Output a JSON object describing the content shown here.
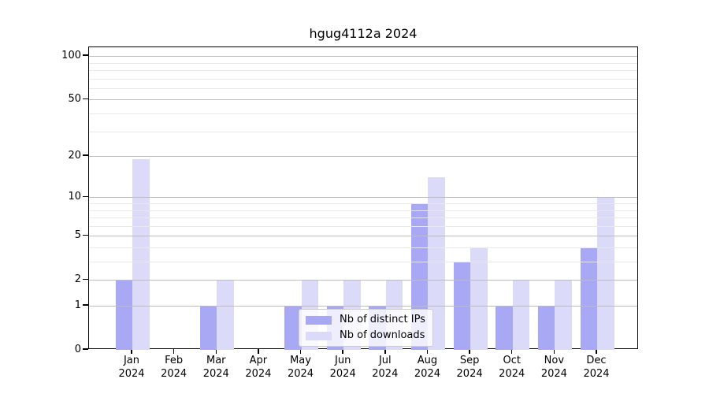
{
  "title": "hgug4112a 2024",
  "chart_data": {
    "type": "bar",
    "title": "hgug4112a 2024",
    "categories": [
      "Jan",
      "Feb",
      "Mar",
      "Apr",
      "May",
      "Jun",
      "Jul",
      "Aug",
      "Sep",
      "Oct",
      "Nov",
      "Dec"
    ],
    "x_tick_year_line": "2024",
    "series": [
      {
        "name": "Nb of distinct IPs",
        "color": "#a8a8f4",
        "values": [
          2,
          0,
          1,
          0,
          1,
          1,
          1,
          9,
          3,
          1,
          1,
          4
        ]
      },
      {
        "name": "Nb of downloads",
        "color": "#dbdbf9",
        "values": [
          19,
          0,
          2,
          0,
          2,
          2,
          2,
          14,
          4,
          2,
          2,
          10
        ]
      }
    ],
    "y_axis": {
      "scale": "log1p",
      "major_ticks": [
        0,
        1,
        2,
        5,
        10,
        20,
        50,
        100
      ],
      "minor_gridlines": [
        3,
        4,
        6,
        7,
        8,
        9,
        30,
        40,
        60,
        70,
        80,
        90
      ],
      "range_top": 115
    },
    "legend": {
      "position": "lower center",
      "items": [
        "Nb of distinct IPs",
        "Nb of downloads"
      ]
    },
    "colors": {
      "bar_distinct_ips": "#a8a8f4",
      "bar_downloads": "#dbdbf9",
      "major_grid": "#bdbdbd",
      "minor_grid": "#e9e9e9",
      "axis": "#000000",
      "text": "#000000"
    }
  }
}
